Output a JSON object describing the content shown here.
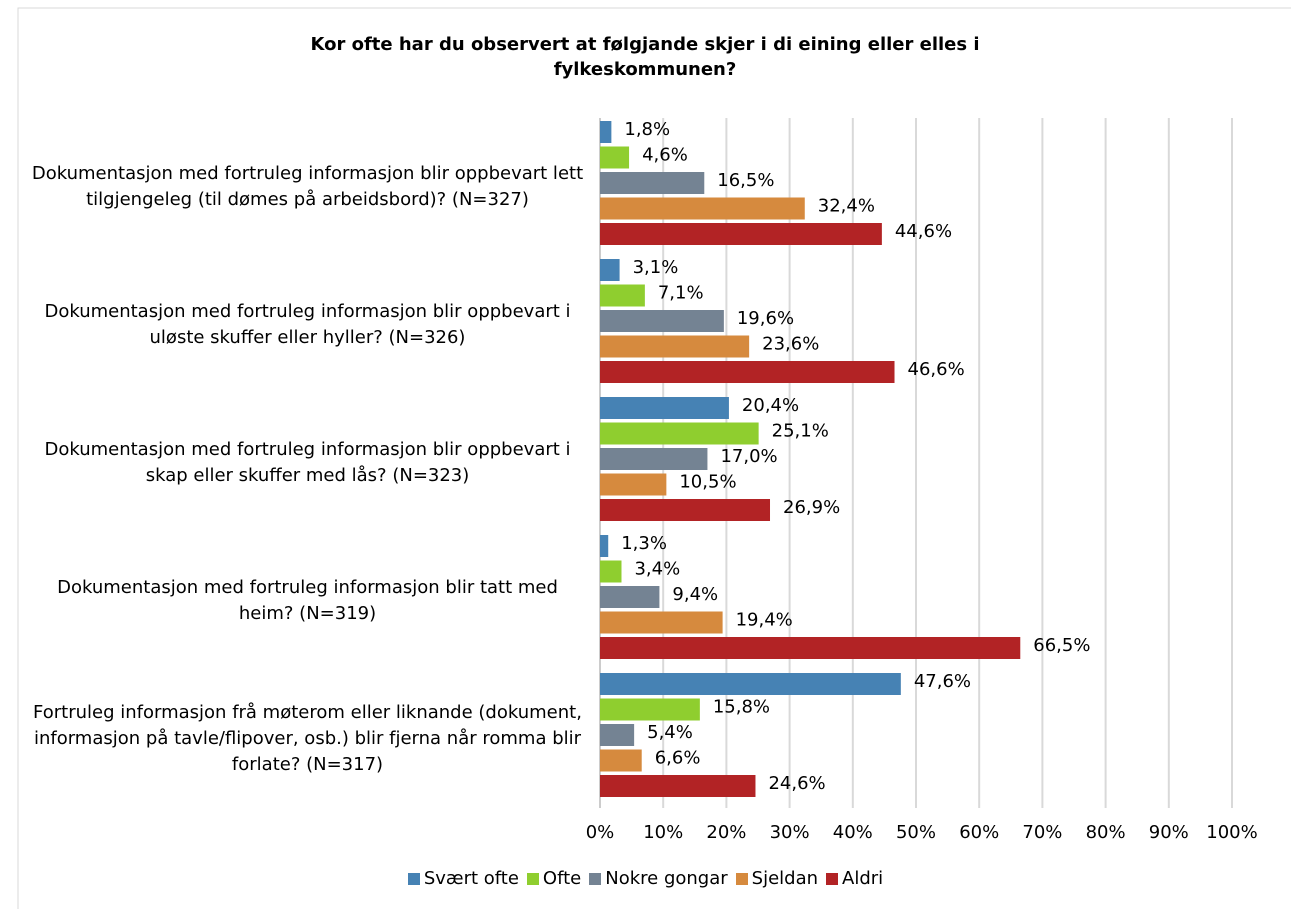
{
  "chart_data": {
    "type": "bar",
    "orientation": "horizontal",
    "title": "Kor ofte har du observert at følgjande skjer i di eining eller elles i fylkeskommunen?",
    "categories": [
      "Dokumentasjon med fortruleg informasjon blir oppbevart lett tilgjengeleg (til dømes på arbeidsbord)? (N=327)",
      "Dokumentasjon med fortruleg informasjon blir oppbevart i uløste skuffer eller hyller? (N=326)",
      "Dokumentasjon med fortruleg informasjon blir oppbevart i skap eller skuffer med lås? (N=323)",
      "Dokumentasjon med fortruleg informasjon blir tatt med heim? (N=319)",
      "Fortruleg informasjon frå møterom eller liknande (dokument, informasjon på tavle/flipover, osb.) blir fjerna når romma blir forlate? (N=317)"
    ],
    "series": [
      {
        "name": "Svært ofte",
        "color": "#4682b4",
        "values": [
          1.8,
          3.1,
          20.4,
          1.3,
          47.6
        ],
        "value_labels": [
          "1,8%",
          "3,1%",
          "20,4%",
          "1,3%",
          "47,6%"
        ]
      },
      {
        "name": "Ofte",
        "color": "#8fce2f",
        "values": [
          4.6,
          7.1,
          25.1,
          3.4,
          15.8
        ],
        "value_labels": [
          "4,6%",
          "7,1%",
          "25,1%",
          "3,4%",
          "15,8%"
        ]
      },
      {
        "name": "Nokre gongar",
        "color": "#748393",
        "values": [
          16.5,
          19.6,
          17.0,
          9.4,
          5.4
        ],
        "value_labels": [
          "16,5%",
          "19,6%",
          "17,0%",
          "9,4%",
          "5,4%"
        ]
      },
      {
        "name": "Sjeldan",
        "color": "#d68a3e",
        "values": [
          32.4,
          23.6,
          10.5,
          19.4,
          6.6
        ],
        "value_labels": [
          "32,4%",
          "23,6%",
          "10,5%",
          "19,4%",
          "6,6%"
        ]
      },
      {
        "name": "Aldri",
        "color": "#b22325",
        "values": [
          44.6,
          46.6,
          26.9,
          66.5,
          24.6
        ],
        "value_labels": [
          "44,6%",
          "46,6%",
          "26,9%",
          "66,5%",
          "24,6%"
        ]
      }
    ],
    "xlim": [
      0,
      100
    ],
    "xticks": [
      {
        "value": 0,
        "label": "0%"
      },
      {
        "value": 10,
        "label": "10%"
      },
      {
        "value": 20,
        "label": "20%"
      },
      {
        "value": 30,
        "label": "30%"
      },
      {
        "value": 40,
        "label": "40%"
      },
      {
        "value": 50,
        "label": "50%"
      },
      {
        "value": 60,
        "label": "60%"
      },
      {
        "value": 70,
        "label": "70%"
      },
      {
        "value": 80,
        "label": "80%"
      },
      {
        "value": 90,
        "label": "90%"
      },
      {
        "value": 100,
        "label": "100%"
      }
    ],
    "grid": true,
    "legend": "bottom"
  }
}
